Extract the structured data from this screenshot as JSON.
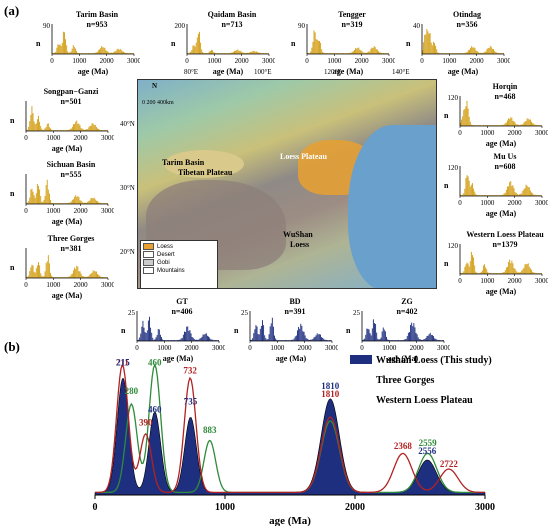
{
  "panel_a": "(a)",
  "panel_b": "(b)",
  "axis_label_age": "age (Ma)",
  "axis_label_n": "n",
  "small_charts": [
    {
      "id": "tarim",
      "title": "Tarim Basin",
      "count": "n=953",
      "ymax": "90",
      "ticks": [
        "0",
        "1000",
        "2000",
        "3000"
      ],
      "color": "#d4a017",
      "peaks": [
        [
          250,
          0.45
        ],
        [
          450,
          1.0
        ],
        [
          800,
          0.35
        ],
        [
          1850,
          0.3
        ],
        [
          2450,
          0.2
        ]
      ]
    },
    {
      "id": "qaidam",
      "title": "Qaidam Basin",
      "count": "n=713",
      "ymax": "200",
      "ticks": [
        "0",
        "1000",
        "2000",
        "3000"
      ],
      "color": "#d4a017",
      "peaks": [
        [
          250,
          0.35
        ],
        [
          430,
          1.0
        ],
        [
          900,
          0.15
        ],
        [
          1850,
          0.15
        ],
        [
          2450,
          0.1
        ]
      ]
    },
    {
      "id": "tengger",
      "title": "Tengger",
      "count": "n=319",
      "ymax": "90",
      "ticks": [
        "0",
        "1000",
        "2000",
        "3000"
      ],
      "color": "#d4a017",
      "peaks": [
        [
          280,
          1.0
        ],
        [
          450,
          0.6
        ],
        [
          1850,
          0.25
        ],
        [
          2450,
          0.3
        ]
      ]
    },
    {
      "id": "otindag",
      "title": "Otindag",
      "count": "n=356",
      "ymax": "40",
      "ticks": [
        "0",
        "1000",
        "2000",
        "3000"
      ],
      "color": "#d4a017",
      "peaks": [
        [
          130,
          0.9
        ],
        [
          260,
          1.0
        ],
        [
          450,
          0.5
        ],
        [
          1850,
          0.3
        ],
        [
          2500,
          0.3
        ]
      ]
    },
    {
      "id": "songpan",
      "title": "Songpan−Ganzi",
      "count": "n=501",
      "ymax": "",
      "ticks": [
        "0",
        "1000",
        "2000",
        "3000"
      ],
      "color": "#d4a017",
      "peaks": [
        [
          220,
          1.0
        ],
        [
          450,
          0.6
        ],
        [
          800,
          0.3
        ],
        [
          1850,
          0.4
        ],
        [
          2450,
          0.3
        ]
      ]
    },
    {
      "id": "horqin",
      "title": "Horqin",
      "count": "n=468",
      "ymax": "120",
      "ticks": [
        "0",
        "1000",
        "2000",
        "3000"
      ],
      "color": "#d4a017",
      "peaks": [
        [
          130,
          0.5
        ],
        [
          260,
          1.0
        ],
        [
          1850,
          0.35
        ],
        [
          2500,
          0.3
        ]
      ]
    },
    {
      "id": "sichuan",
      "title": "Sichuan Basin",
      "count": "n=555",
      "ymax": "",
      "ticks": [
        "0",
        "1000",
        "2000",
        "3000"
      ],
      "color": "#d4a017",
      "peaks": [
        [
          220,
          0.7
        ],
        [
          450,
          0.9
        ],
        [
          780,
          1.0
        ],
        [
          1850,
          0.35
        ],
        [
          2450,
          0.25
        ]
      ]
    },
    {
      "id": "muus",
      "title": "Mu Us",
      "count": "n=608",
      "ymax": "120",
      "ticks": [
        "0",
        "1000",
        "2000",
        "3000"
      ],
      "color": "#d4a017",
      "peaks": [
        [
          270,
          1.0
        ],
        [
          450,
          0.5
        ],
        [
          1850,
          0.6
        ],
        [
          2450,
          0.45
        ]
      ]
    },
    {
      "id": "threegorges",
      "title": "Three Gorges",
      "count": "n=381",
      "ymax": "",
      "ticks": [
        "0",
        "1000",
        "2000",
        "3000"
      ],
      "color": "#d4a017",
      "peaks": [
        [
          220,
          0.6
        ],
        [
          450,
          0.7
        ],
        [
          800,
          1.0
        ],
        [
          1850,
          0.5
        ],
        [
          2500,
          0.3
        ]
      ]
    },
    {
      "id": "wlp",
      "title": "Western Loess Plateau",
      "count": "n=1379",
      "ymax": "120",
      "ticks": [
        "0",
        "1000",
        "2000",
        "3000"
      ],
      "color": "#d4a017",
      "peaks": [
        [
          250,
          0.5
        ],
        [
          450,
          1.0
        ],
        [
          900,
          0.4
        ],
        [
          1850,
          0.6
        ],
        [
          2450,
          0.45
        ]
      ]
    },
    {
      "id": "gt",
      "title": "GT",
      "count": "n=406",
      "ymax": "25",
      "ticks": [
        "0",
        "1000",
        "2000",
        "3000"
      ],
      "color": "#1f2f80",
      "peaks": [
        [
          220,
          0.8
        ],
        [
          450,
          1.0
        ],
        [
          800,
          0.5
        ],
        [
          1850,
          0.6
        ],
        [
          2500,
          0.3
        ]
      ]
    },
    {
      "id": "bd",
      "title": "BD",
      "count": "n=391",
      "ymax": "25",
      "ticks": [
        "0",
        "1000",
        "2000",
        "3000"
      ],
      "color": "#1f2f80",
      "peaks": [
        [
          220,
          0.7
        ],
        [
          450,
          0.9
        ],
        [
          800,
          1.0
        ],
        [
          1850,
          0.7
        ],
        [
          2500,
          0.3
        ]
      ]
    },
    {
      "id": "zg",
      "title": "ZG",
      "count": "n=402",
      "ymax": "25",
      "ticks": [
        "0",
        "1000",
        "2000",
        "3000"
      ],
      "color": "#1f2f80",
      "peaks": [
        [
          220,
          0.6
        ],
        [
          450,
          1.0
        ],
        [
          800,
          0.6
        ],
        [
          1850,
          0.8
        ],
        [
          2500,
          0.3
        ]
      ]
    }
  ],
  "map": {
    "labels": {
      "tarim": "Tarim Basin",
      "loess": "Loess Plateau",
      "tibet": "Tibetan Plateau",
      "wushan": "WuShan",
      "wushan2": "Loess"
    },
    "lon_ticks": [
      "80°E",
      "100°E",
      "120°E",
      "140°E"
    ],
    "lat_ticks": [
      "40°N",
      "30°N",
      "20°N"
    ],
    "scale": "0  200  400km",
    "north": "N",
    "legend": [
      "Loess",
      "Desert",
      "Gobi",
      "Mountains"
    ],
    "legend_colors": [
      "#e9a030",
      "#ffffff",
      "#cccccc",
      "#ffffff"
    ]
  },
  "chart_data": {
    "type": "area",
    "xlabel": "age (Ma)",
    "x_ticks": [
      0,
      1000,
      2000,
      3000
    ],
    "xlim": [
      0,
      3000
    ],
    "series": [
      {
        "name": "Wushan Loess (This study)",
        "color": "#1f2f80",
        "peaks": [
          [
            215,
            0.88
          ],
          [
            460,
            0.62
          ],
          [
            735,
            0.58
          ],
          [
            1810,
            0.72
          ],
          [
            2556,
            0.25
          ]
        ]
      },
      {
        "name": "Three Gorges",
        "color": "#2e8b3a",
        "peaks": [
          [
            280,
            0.68
          ],
          [
            460,
            0.98
          ],
          [
            883,
            0.4
          ],
          [
            1810,
            0.55
          ],
          [
            2559,
            0.3
          ]
        ]
      },
      {
        "name": "Western Loess Plateau",
        "color": "#b22222",
        "peaks": [
          [
            211,
            0.98
          ],
          [
            390,
            0.45
          ],
          [
            732,
            0.88
          ],
          [
            1810,
            0.58
          ],
          [
            2368,
            0.3
          ],
          [
            2722,
            0.18
          ]
        ]
      }
    ],
    "peak_labels": [
      {
        "text": "211",
        "x": 211,
        "y": 0.98,
        "color": "#b22222"
      },
      {
        "text": "215",
        "x": 215,
        "y": 0.98,
        "color": "#1f2f80"
      },
      {
        "text": "460",
        "x": 460,
        "y": 0.98,
        "color": "#2e8b3a"
      },
      {
        "text": "280",
        "x": 280,
        "y": 0.76,
        "color": "#2e8b3a"
      },
      {
        "text": "390",
        "x": 390,
        "y": 0.52,
        "color": "#b22222"
      },
      {
        "text": "460",
        "x": 460,
        "y": 0.62,
        "color": "#1f2f80"
      },
      {
        "text": "732",
        "x": 732,
        "y": 0.92,
        "color": "#b22222"
      },
      {
        "text": "735",
        "x": 735,
        "y": 0.68,
        "color": "#1f2f80"
      },
      {
        "text": "1810",
        "x": 1810,
        "y": 0.8,
        "color": "#1f2f80"
      },
      {
        "text": "1810",
        "x": 1810,
        "y": 0.74,
        "color": "#b22222"
      },
      {
        "text": "883",
        "x": 883,
        "y": 0.46,
        "color": "#2e8b3a"
      },
      {
        "text": "2559",
        "x": 2559,
        "y": 0.36,
        "color": "#2e8b3a"
      },
      {
        "text": "2556",
        "x": 2556,
        "y": 0.3,
        "color": "#1f2f80"
      },
      {
        "text": "2368",
        "x": 2368,
        "y": 0.34,
        "color": "#b22222"
      },
      {
        "text": "2722",
        "x": 2722,
        "y": 0.2,
        "color": "#b22222"
      }
    ],
    "legend_placement": "top-right"
  }
}
